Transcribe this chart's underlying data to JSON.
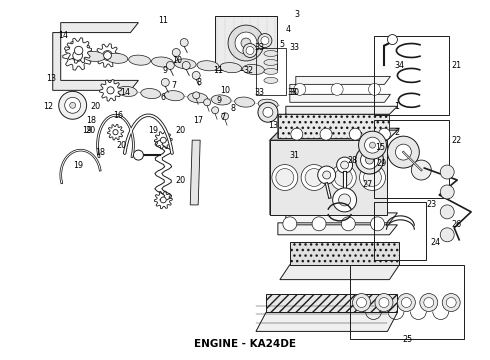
{
  "title": "ENGINE - KA24DE",
  "title_fontsize": 7.5,
  "title_fontweight": "bold",
  "bg_color": "#ffffff",
  "line_color": "#1a1a1a",
  "fig_width": 4.9,
  "fig_height": 3.6,
  "dpi": 100
}
